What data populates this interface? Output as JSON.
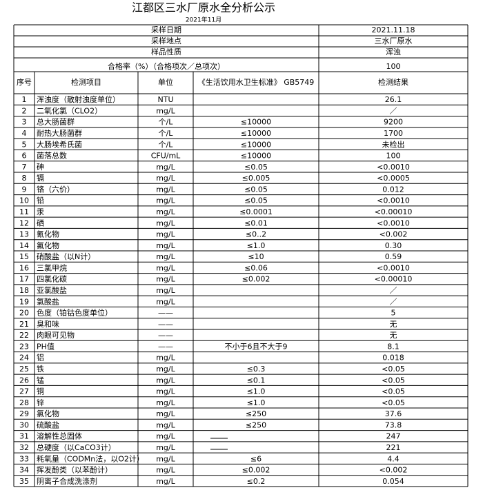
{
  "title": "江都区三水厂原水全分析公示",
  "subtitle": "2021年11月",
  "info": [
    [
      "采样日期",
      "2021.11.18"
    ],
    [
      "采样地点",
      "三水厂原水"
    ],
    [
      "样品性质",
      "浑浊"
    ],
    [
      "合格率（%）（合格项次／总项次）",
      "100"
    ]
  ],
  "table": {
    "columns": [
      "序号",
      "检测项目",
      "单位",
      "《生活饮用水卫生标准》 GB5749",
      "检测结果"
    ],
    "rows": [
      [
        1,
        "浑浊度（散射浊度单位）",
        "NTU",
        null,
        "26.1"
      ],
      [
        2,
        "二氧化氯（CLO2）",
        "mg/L",
        null,
        "／"
      ],
      [
        3,
        "总大肠菌群",
        "个/L",
        "≤10000",
        "9200"
      ],
      [
        4,
        "耐热大肠菌群",
        "个/L",
        "≤10000",
        "1700"
      ],
      [
        5,
        "大肠埃希氏菌",
        "个/L",
        "≤10000",
        "未检出"
      ],
      [
        6,
        "菌落总数",
        "CFU/mL",
        "≤10000",
        "100"
      ],
      [
        7,
        "砷",
        "mg/L",
        "≤0.05",
        "<0.0010"
      ],
      [
        8,
        "镉",
        "mg/L",
        "≤0.005",
        "<0.0005"
      ],
      [
        9,
        "铬（六价）",
        "mg/L",
        "≤0.05",
        "0.012"
      ],
      [
        10,
        "铅",
        "mg/L",
        "≤0.05",
        "<0.0010"
      ],
      [
        11,
        "汞",
        "mg/L",
        "≤0.0001",
        "<0.00010"
      ],
      [
        12,
        "硒",
        "mg/L",
        "≤0.01",
        "<0.0010"
      ],
      [
        13,
        "氰化物",
        "mg/L",
        "≤0..2",
        "<0.002"
      ],
      [
        14,
        "氟化物",
        "mg/L",
        "≤1.0",
        "0.30"
      ],
      [
        15,
        "硝酸盐（以N计）",
        "mg/L",
        "≤10",
        "0.59"
      ],
      [
        16,
        "三氯甲烷",
        "mg/L",
        "≤0.06",
        "<0.0010"
      ],
      [
        17,
        "四氯化碳",
        "mg/L",
        "≤0.002",
        "<0.00010"
      ],
      [
        18,
        "亚氯酸盐",
        "mg/L",
        null,
        "／"
      ],
      [
        19,
        "氯酸盐",
        "mg/L",
        null,
        "／"
      ],
      [
        20,
        "色度（铂钴色度单位）",
        "——",
        null,
        "5"
      ],
      [
        21,
        "臭和味",
        "——",
        null,
        "无"
      ],
      [
        22,
        "肉眼可见物",
        "——",
        null,
        "无"
      ],
      [
        23,
        "PH值",
        "——",
        "不小于6且不大于9",
        "8.1"
      ],
      [
        24,
        "铝",
        "mg/L",
        null,
        "0.018"
      ],
      [
        25,
        "铁",
        "mg/L",
        "≤0.3",
        "<0.05"
      ],
      [
        26,
        "锰",
        "mg/L",
        "≤0.1",
        "<0.05"
      ],
      [
        27,
        "铜",
        "mg/L",
        "≤1.0",
        "<0.05"
      ],
      [
        28,
        "锌",
        "mg/L",
        "≤1.0",
        "<0.05"
      ],
      [
        29,
        "氯化物",
        "mg/L",
        "≤250",
        "37.6"
      ],
      [
        30,
        "硫酸盐",
        "mg/L",
        "≤250",
        "73.8"
      ],
      [
        31,
        "溶解性总固体",
        "mg/L",
        null,
        "247"
      ],
      [
        32,
        "总硬度（以CaCO3计）",
        "mg/L",
        null,
        "221"
      ],
      [
        33,
        "耗氧量（CODMn法，以O2计）",
        "mg/L",
        "≤6",
        "4.4"
      ],
      [
        34,
        "挥发酚类（以苯酚计）",
        "mg/L",
        "≤0.002",
        "<0.002"
      ],
      [
        35,
        "阴离子合成洗涤剂",
        "mg/L",
        "≤0.2",
        "0.054"
      ]
    ]
  }
}
